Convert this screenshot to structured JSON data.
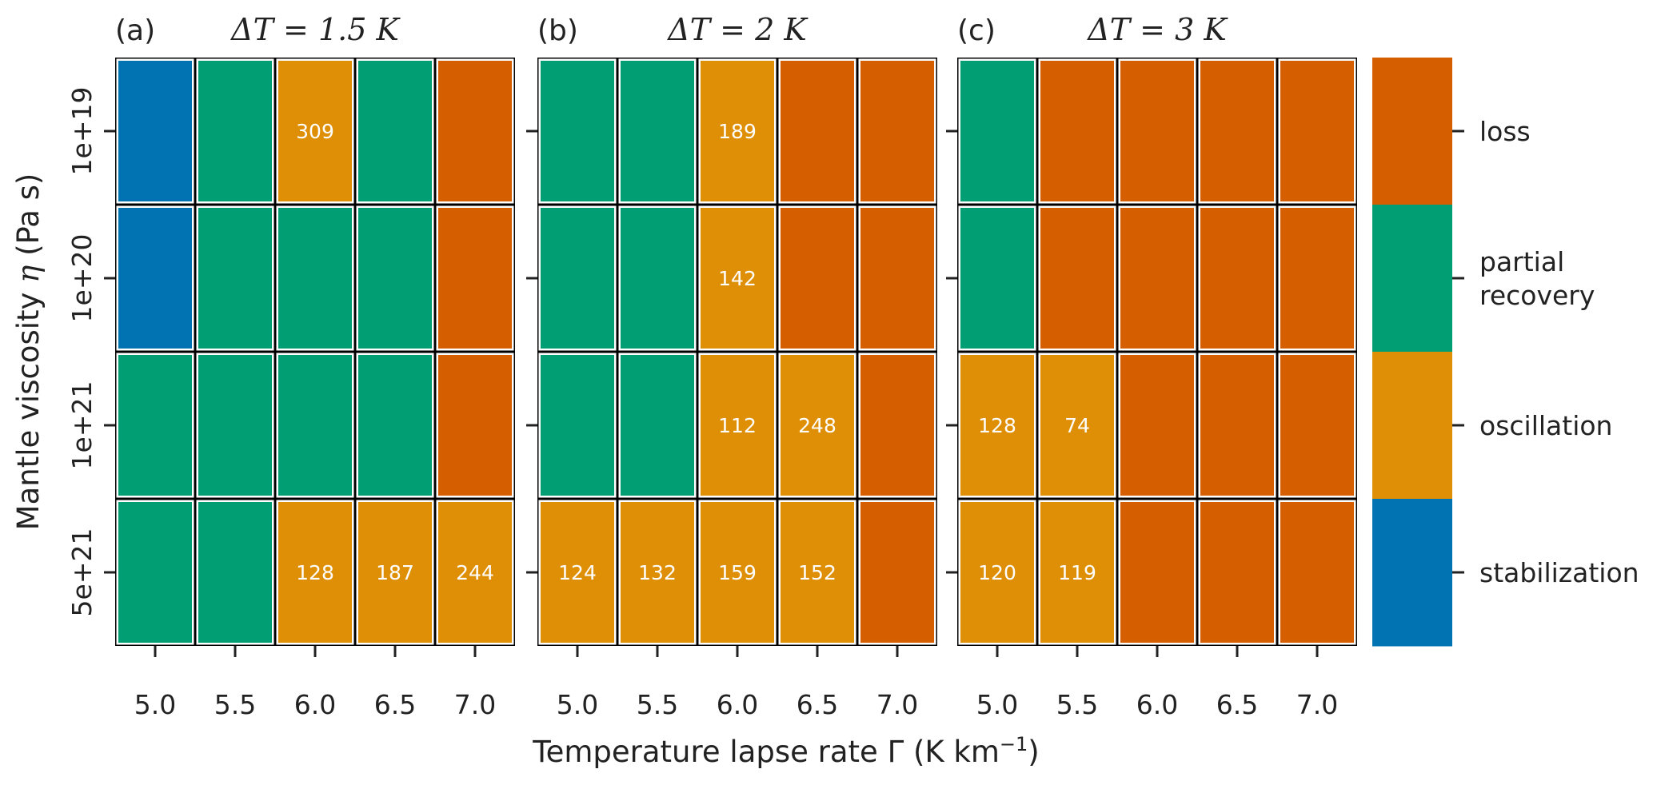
{
  "chart_data": {
    "type": "heatmap",
    "x_values": [
      "5.0",
      "5.5",
      "6.0",
      "6.5",
      "7.0"
    ],
    "y_values": [
      "1e+19",
      "1e+20",
      "1e+21",
      "5e+21"
    ],
    "xlabel_text": "Temperature lapse rate Γ (K km",
    "xlabel_sup": "−1",
    "xlabel_close": ")",
    "ylabel_text": "Mantle viscosity",
    "ylabel_symbol": "η",
    "ylabel_unit": "(Pa s)",
    "colors": {
      "stabilization": "#0173b2",
      "partial recovery": "#029e73",
      "oscillation": "#de8f05",
      "loss": "#d55e00"
    },
    "legend": {
      "position": "right",
      "entries": [
        {
          "key": "loss",
          "lines": [
            "loss"
          ]
        },
        {
          "key": "partial recovery",
          "lines": [
            "partial",
            "recovery"
          ]
        },
        {
          "key": "oscillation",
          "lines": [
            "oscillation"
          ]
        },
        {
          "key": "stabilization",
          "lines": [
            "stabilization"
          ]
        }
      ]
    },
    "panels": [
      {
        "tag": "(a)",
        "title": "ΔT = 1.5 K",
        "cells": [
          [
            {
              "s": "stabilization"
            },
            {
              "s": "partial recovery"
            },
            {
              "s": "oscillation",
              "n": "309"
            },
            {
              "s": "partial recovery"
            },
            {
              "s": "loss"
            }
          ],
          [
            {
              "s": "stabilization"
            },
            {
              "s": "partial recovery"
            },
            {
              "s": "partial recovery"
            },
            {
              "s": "partial recovery"
            },
            {
              "s": "loss"
            }
          ],
          [
            {
              "s": "partial recovery"
            },
            {
              "s": "partial recovery"
            },
            {
              "s": "partial recovery"
            },
            {
              "s": "partial recovery"
            },
            {
              "s": "loss"
            }
          ],
          [
            {
              "s": "partial recovery"
            },
            {
              "s": "partial recovery"
            },
            {
              "s": "oscillation",
              "n": "128"
            },
            {
              "s": "oscillation",
              "n": "187"
            },
            {
              "s": "oscillation",
              "n": "244"
            }
          ]
        ]
      },
      {
        "tag": "(b)",
        "title": "ΔT = 2 K",
        "cells": [
          [
            {
              "s": "partial recovery"
            },
            {
              "s": "partial recovery"
            },
            {
              "s": "oscillation",
              "n": "189"
            },
            {
              "s": "loss"
            },
            {
              "s": "loss"
            }
          ],
          [
            {
              "s": "partial recovery"
            },
            {
              "s": "partial recovery"
            },
            {
              "s": "oscillation",
              "n": "142"
            },
            {
              "s": "loss"
            },
            {
              "s": "loss"
            }
          ],
          [
            {
              "s": "partial recovery"
            },
            {
              "s": "partial recovery"
            },
            {
              "s": "oscillation",
              "n": "112"
            },
            {
              "s": "oscillation",
              "n": "248"
            },
            {
              "s": "loss"
            }
          ],
          [
            {
              "s": "oscillation",
              "n": "124"
            },
            {
              "s": "oscillation",
              "n": "132"
            },
            {
              "s": "oscillation",
              "n": "159"
            },
            {
              "s": "oscillation",
              "n": "152"
            },
            {
              "s": "loss"
            }
          ]
        ]
      },
      {
        "tag": "(c)",
        "title": "ΔT = 3 K",
        "cells": [
          [
            {
              "s": "partial recovery"
            },
            {
              "s": "loss"
            },
            {
              "s": "loss"
            },
            {
              "s": "loss"
            },
            {
              "s": "loss"
            }
          ],
          [
            {
              "s": "partial recovery"
            },
            {
              "s": "loss"
            },
            {
              "s": "loss"
            },
            {
              "s": "loss"
            },
            {
              "s": "loss"
            }
          ],
          [
            {
              "s": "oscillation",
              "n": "128"
            },
            {
              "s": "oscillation",
              "n": "74"
            },
            {
              "s": "loss"
            },
            {
              "s": "loss"
            },
            {
              "s": "loss"
            }
          ],
          [
            {
              "s": "oscillation",
              "n": "120"
            },
            {
              "s": "oscillation",
              "n": "119"
            },
            {
              "s": "loss"
            },
            {
              "s": "loss"
            },
            {
              "s": "loss"
            }
          ]
        ]
      }
    ]
  }
}
